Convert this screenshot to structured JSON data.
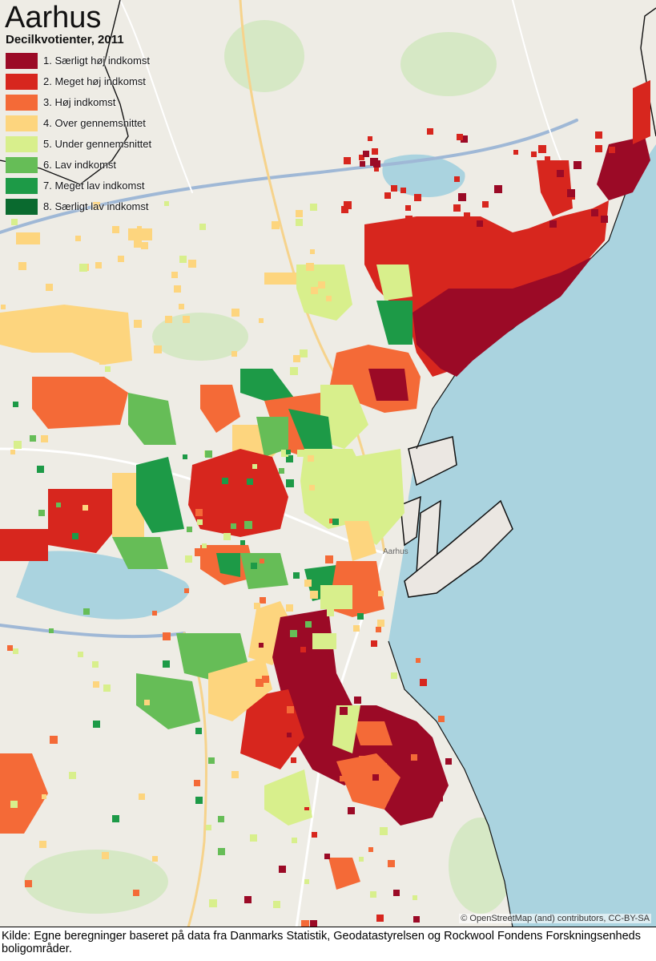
{
  "map": {
    "title": "Aarhus",
    "subtitle": "Decilkvotienter, 2011",
    "legend": [
      {
        "label": "1. Særligt høj indkomst",
        "color": "#9b0a26"
      },
      {
        "label": "2. Meget høj indkomst",
        "color": "#d7261e"
      },
      {
        "label": "3. Høj indkomst",
        "color": "#f46a37"
      },
      {
        "label": "4. Over gennemsnittet",
        "color": "#fdd57e"
      },
      {
        "label": "5. Under gennemsnittet",
        "color": "#d8ef8c"
      },
      {
        "label": "6. Lav indkomst",
        "color": "#66bd57"
      },
      {
        "label": "7. Meget lav indkomst",
        "color": "#1d9a47"
      },
      {
        "label": "8. Særligt lav indkomst",
        "color": "#0a6a2f"
      }
    ],
    "attribution": "© OpenStreetMap (and) contributors, CC-BY-SA",
    "place_label": "Aarhus",
    "water_color": "#aad3df",
    "land_color": "#eeece5"
  },
  "source_text": "Kilde: Egne beregninger baseret på data fra Danmarks Statistik, Geodatastyrelsen og Rockwool Fondens Forskningsenheds boligområder."
}
